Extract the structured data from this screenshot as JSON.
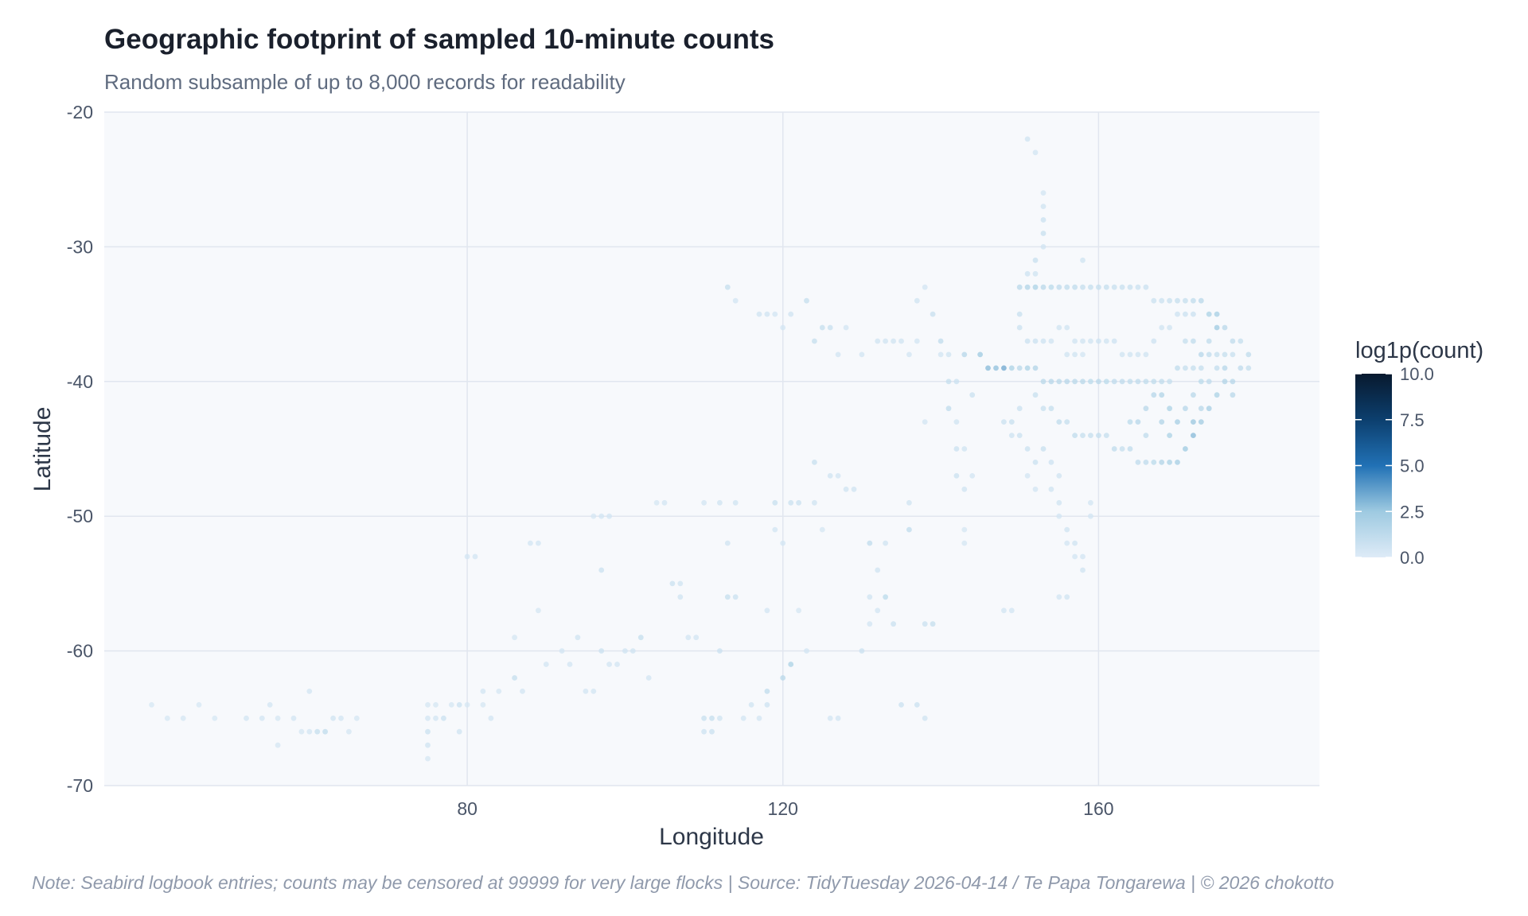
{
  "chart_data": {
    "type": "scatter",
    "title": "Geographic footprint of sampled 10-minute counts",
    "subtitle": "Random subsample of up to 8,000 records for readability",
    "xlabel": "Longitude",
    "ylabel": "Latitude",
    "xlim": [
      34,
      188
    ],
    "ylim": [
      -70,
      -20
    ],
    "x_ticks": [
      80,
      120,
      160
    ],
    "y_ticks": [
      -20,
      -30,
      -40,
      -50,
      -60,
      -70
    ],
    "x_tick_labels": [
      "80",
      "120",
      "160"
    ],
    "y_tick_labels": [
      "-20",
      "-30",
      "-40",
      "-50",
      "-60",
      "-70"
    ],
    "grid": true,
    "color_scale": {
      "title": "log1p(count)",
      "ticks": [
        0.0,
        2.5,
        5.0,
        7.5,
        10.0
      ],
      "tick_labels": [
        "0.0",
        "2.5",
        "5.0",
        "7.5",
        "10.0"
      ],
      "range": [
        0,
        10
      ],
      "low_color": "#deebf7",
      "mid_color": "#2171b5",
      "high_color": "#08192e",
      "position": "right"
    },
    "points": [
      [
        40,
        -64,
        0.3
      ],
      [
        42,
        -65,
        0.3
      ],
      [
        44,
        -65,
        0.4
      ],
      [
        46,
        -64,
        0.3
      ],
      [
        48,
        -65,
        0.3
      ],
      [
        52,
        -65,
        0.5
      ],
      [
        54,
        -65,
        0.5
      ],
      [
        55,
        -64,
        0.5
      ],
      [
        56,
        -65,
        0.4
      ],
      [
        56,
        -67,
        0.4
      ],
      [
        58,
        -65,
        0.5
      ],
      [
        59,
        -66,
        0.4
      ],
      [
        60,
        -66,
        0.5
      ],
      [
        60,
        -63,
        0.5
      ],
      [
        61,
        -66,
        1.0
      ],
      [
        62,
        -66,
        1.2
      ],
      [
        63,
        -65,
        0.6
      ],
      [
        64,
        -65,
        0.5
      ],
      [
        65,
        -66,
        0.4
      ],
      [
        66,
        -65,
        0.4
      ],
      [
        75,
        -64,
        0.4
      ],
      [
        75,
        -65,
        0.5
      ],
      [
        75,
        -66,
        0.8
      ],
      [
        75,
        -67,
        0.6
      ],
      [
        75,
        -68,
        0.4
      ],
      [
        76,
        -64,
        0.4
      ],
      [
        76,
        -65,
        0.5
      ],
      [
        77,
        -65,
        0.8
      ],
      [
        78,
        -64,
        0.4
      ],
      [
        79,
        -64,
        0.8
      ],
      [
        79,
        -66,
        0.6
      ],
      [
        80,
        -64,
        0.4
      ],
      [
        80,
        -53,
        0.5
      ],
      [
        81,
        -53,
        0.5
      ],
      [
        82,
        -63,
        0.5
      ],
      [
        82,
        -64,
        0.4
      ],
      [
        83,
        -65,
        0.5
      ],
      [
        84,
        -63,
        0.4
      ],
      [
        86,
        -62,
        1.0
      ],
      [
        86,
        -59,
        0.4
      ],
      [
        87,
        -63,
        0.5
      ],
      [
        88,
        -52,
        0.5
      ],
      [
        89,
        -52,
        0.5
      ],
      [
        89,
        -57,
        0.4
      ],
      [
        90,
        -61,
        0.5
      ],
      [
        92,
        -60,
        0.5
      ],
      [
        93,
        -61,
        0.5
      ],
      [
        94,
        -59,
        0.6
      ],
      [
        95,
        -63,
        0.5
      ],
      [
        96,
        -63,
        0.5
      ],
      [
        97,
        -60,
        0.8
      ],
      [
        97,
        -54,
        0.8
      ],
      [
        98,
        -61,
        0.5
      ],
      [
        99,
        -61,
        0.5
      ],
      [
        100,
        -60,
        0.6
      ],
      [
        101,
        -60,
        0.6
      ],
      [
        102,
        -59,
        1.0
      ],
      [
        103,
        -62,
        0.5
      ],
      [
        104,
        -49,
        0.4
      ],
      [
        105,
        -49,
        0.5
      ],
      [
        96,
        -50,
        0.4
      ],
      [
        97,
        -50,
        0.5
      ],
      [
        98,
        -50,
        0.5
      ],
      [
        106,
        -55,
        0.8
      ],
      [
        107,
        -55,
        0.6
      ],
      [
        107,
        -56,
        0.6
      ],
      [
        108,
        -59,
        0.5
      ],
      [
        109,
        -59,
        0.5
      ],
      [
        110,
        -65,
        0.9
      ],
      [
        110,
        -66,
        0.7
      ],
      [
        111,
        -65,
        1.0
      ],
      [
        111,
        -66,
        0.8
      ],
      [
        112,
        -65,
        0.6
      ],
      [
        112,
        -60,
        0.8
      ],
      [
        113,
        -52,
        0.6
      ],
      [
        113,
        -56,
        1.0
      ],
      [
        114,
        -56,
        0.8
      ],
      [
        114,
        -49,
        0.6
      ],
      [
        112,
        -49,
        0.6
      ],
      [
        110,
        -49,
        0.5
      ],
      [
        115,
        -65,
        0.5
      ],
      [
        116,
        -64,
        0.6
      ],
      [
        117,
        -65,
        0.5
      ],
      [
        118,
        -64,
        0.7
      ],
      [
        118,
        -63,
        1.2
      ],
      [
        118,
        -57,
        0.5
      ],
      [
        119,
        -51,
        0.5
      ],
      [
        119,
        -49,
        0.9
      ],
      [
        120,
        -52,
        0.5
      ],
      [
        120,
        -62,
        1.5
      ],
      [
        121,
        -61,
        2.0
      ],
      [
        121,
        -49,
        0.8
      ],
      [
        122,
        -49,
        0.8
      ],
      [
        122,
        -57,
        0.4
      ],
      [
        123,
        -60,
        0.5
      ],
      [
        124,
        -46,
        0.9
      ],
      [
        124,
        -49,
        0.6
      ],
      [
        125,
        -51,
        0.4
      ],
      [
        126,
        -65,
        0.5
      ],
      [
        127,
        -65,
        0.5
      ],
      [
        126,
        -47,
        0.6
      ],
      [
        127,
        -47,
        0.5
      ],
      [
        128,
        -48,
        0.6
      ],
      [
        129,
        -48,
        0.6
      ],
      [
        130,
        -60,
        0.8
      ],
      [
        131,
        -52,
        1.2
      ],
      [
        131,
        -56,
        0.6
      ],
      [
        131,
        -58,
        0.5
      ],
      [
        132,
        -57,
        0.5
      ],
      [
        132,
        -54,
        0.6
      ],
      [
        133,
        -56,
        1.4
      ],
      [
        133,
        -52,
        0.6
      ],
      [
        134,
        -58,
        0.8
      ],
      [
        135,
        -64,
        0.8
      ],
      [
        136,
        -49,
        0.6
      ],
      [
        136,
        -51,
        1.2
      ],
      [
        137,
        -64,
        0.8
      ],
      [
        138,
        -65,
        0.6
      ],
      [
        138,
        -58,
        0.8
      ],
      [
        139,
        -58,
        1.0
      ],
      [
        113,
        -33,
        1.0
      ],
      [
        114,
        -34,
        0.5
      ],
      [
        117,
        -35,
        0.6
      ],
      [
        118,
        -35,
        0.6
      ],
      [
        119,
        -35,
        0.5
      ],
      [
        120,
        -36,
        0.5
      ],
      [
        121,
        -35,
        0.6
      ],
      [
        123,
        -34,
        1.0
      ],
      [
        124,
        -37,
        1.0
      ],
      [
        125,
        -36,
        1.0
      ],
      [
        126,
        -36,
        0.9
      ],
      [
        127,
        -38,
        0.5
      ],
      [
        128,
        -36,
        0.5
      ],
      [
        130,
        -38,
        0.5
      ],
      [
        132,
        -37,
        0.6
      ],
      [
        133,
        -37,
        0.6
      ],
      [
        134,
        -37,
        0.6
      ],
      [
        135,
        -37,
        0.6
      ],
      [
        136,
        -38,
        0.5
      ],
      [
        137,
        -34,
        0.6
      ],
      [
        137,
        -37,
        0.5
      ],
      [
        138,
        -33,
        0.5
      ],
      [
        139,
        -35,
        0.9
      ],
      [
        140,
        -37,
        1.2
      ],
      [
        140,
        -38,
        0.5
      ],
      [
        141,
        -38,
        0.6
      ],
      [
        141,
        -40,
        1.0
      ],
      [
        141,
        -42,
        1.2
      ],
      [
        142,
        -40,
        0.8
      ],
      [
        143,
        -38,
        1.6
      ],
      [
        144,
        -41,
        0.8
      ],
      [
        142,
        -43,
        0.6
      ],
      [
        142,
        -45,
        0.8
      ],
      [
        143,
        -45,
        0.6
      ],
      [
        142,
        -47,
        0.8
      ],
      [
        143,
        -48,
        0.6
      ],
      [
        143,
        -51,
        0.4
      ],
      [
        143,
        -52,
        0.4
      ],
      [
        144,
        -47,
        0.5
      ],
      [
        138,
        -43,
        0.5
      ],
      [
        145,
        -38,
        2.5
      ],
      [
        146,
        -39,
        3.0
      ],
      [
        147,
        -39,
        2.8
      ],
      [
        148,
        -39,
        3.5
      ],
      [
        149,
        -39,
        2.0
      ],
      [
        150,
        -39,
        1.5
      ],
      [
        151,
        -39,
        2.0
      ],
      [
        152,
        -39,
        1.8
      ],
      [
        153,
        -40,
        1.5
      ],
      [
        154,
        -40,
        1.6
      ],
      [
        155,
        -40,
        1.5
      ],
      [
        156,
        -40,
        1.6
      ],
      [
        157,
        -40,
        1.5
      ],
      [
        158,
        -40,
        1.5
      ],
      [
        159,
        -40,
        1.4
      ],
      [
        160,
        -40,
        1.5
      ],
      [
        161,
        -40,
        1.4
      ],
      [
        162,
        -40,
        1.3
      ],
      [
        163,
        -40,
        1.3
      ],
      [
        164,
        -40,
        1.2
      ],
      [
        165,
        -40,
        1.3
      ],
      [
        166,
        -40,
        1.2
      ],
      [
        167,
        -40,
        1.2
      ],
      [
        168,
        -40,
        1.2
      ],
      [
        169,
        -40,
        1.0
      ],
      [
        170,
        -39,
        1.2
      ],
      [
        171,
        -39,
        1.0
      ],
      [
        172,
        -39,
        1.0
      ],
      [
        173,
        -39,
        1.0
      ],
      [
        174,
        -38,
        1.2
      ],
      [
        175,
        -38,
        1.0
      ],
      [
        176,
        -38,
        1.0
      ],
      [
        177,
        -38,
        0.9
      ],
      [
        178,
        -37,
        1.0
      ],
      [
        179,
        -38,
        1.2
      ],
      [
        179,
        -39,
        1.0
      ],
      [
        150,
        -33,
        1.5
      ],
      [
        151,
        -33,
        1.8
      ],
      [
        152,
        -33,
        2.0
      ],
      [
        153,
        -33,
        1.5
      ],
      [
        154,
        -33,
        1.4
      ],
      [
        155,
        -33,
        1.3
      ],
      [
        156,
        -33,
        1.2
      ],
      [
        157,
        -33,
        1.2
      ],
      [
        158,
        -33,
        1.0
      ],
      [
        159,
        -33,
        1.0
      ],
      [
        160,
        -33,
        1.0
      ],
      [
        161,
        -33,
        1.0
      ],
      [
        162,
        -33,
        0.9
      ],
      [
        163,
        -33,
        0.9
      ],
      [
        164,
        -33,
        0.9
      ],
      [
        165,
        -33,
        0.8
      ],
      [
        166,
        -33,
        0.8
      ],
      [
        167,
        -34,
        0.8
      ],
      [
        168,
        -34,
        0.8
      ],
      [
        169,
        -34,
        0.9
      ],
      [
        170,
        -34,
        1.0
      ],
      [
        171,
        -34,
        1.0
      ],
      [
        172,
        -34,
        1.2
      ],
      [
        173,
        -34,
        1.5
      ],
      [
        174,
        -35,
        2.0
      ],
      [
        175,
        -35,
        2.2
      ],
      [
        175,
        -36,
        2.5
      ],
      [
        176,
        -36,
        1.5
      ],
      [
        177,
        -37,
        1.2
      ],
      [
        151,
        -22,
        0.6
      ],
      [
        152,
        -23,
        0.5
      ],
      [
        153,
        -26,
        0.5
      ],
      [
        153,
        -27,
        0.6
      ],
      [
        153,
        -28,
        0.8
      ],
      [
        153,
        -29,
        0.9
      ],
      [
        153,
        -30,
        0.6
      ],
      [
        152,
        -31,
        0.9
      ],
      [
        151,
        -32,
        0.7
      ],
      [
        152,
        -32,
        0.6
      ],
      [
        158,
        -31,
        0.6
      ],
      [
        150,
        -35,
        0.9
      ],
      [
        150,
        -36,
        0.8
      ],
      [
        151,
        -37,
        0.8
      ],
      [
        152,
        -37,
        0.8
      ],
      [
        153,
        -37,
        0.7
      ],
      [
        154,
        -37,
        0.6
      ],
      [
        155,
        -36,
        0.6
      ],
      [
        156,
        -36,
        0.6
      ],
      [
        157,
        -37,
        0.6
      ],
      [
        158,
        -37,
        0.6
      ],
      [
        159,
        -37,
        0.6
      ],
      [
        160,
        -37,
        0.7
      ],
      [
        161,
        -37,
        0.6
      ],
      [
        162,
        -37,
        0.7
      ],
      [
        163,
        -38,
        0.6
      ],
      [
        164,
        -38,
        0.6
      ],
      [
        165,
        -38,
        0.6
      ],
      [
        166,
        -38,
        0.6
      ],
      [
        167,
        -37,
        0.7
      ],
      [
        168,
        -36,
        0.6
      ],
      [
        169,
        -36,
        0.6
      ],
      [
        170,
        -35,
        0.7
      ],
      [
        171,
        -35,
        0.8
      ],
      [
        172,
        -35,
        0.8
      ],
      [
        152,
        -41,
        0.9
      ],
      [
        153,
        -42,
        0.9
      ],
      [
        154,
        -42,
        1.0
      ],
      [
        155,
        -43,
        1.2
      ],
      [
        156,
        -43,
        1.0
      ],
      [
        157,
        -44,
        1.2
      ],
      [
        158,
        -44,
        1.0
      ],
      [
        159,
        -44,
        1.0
      ],
      [
        160,
        -44,
        1.1
      ],
      [
        161,
        -44,
        1.0
      ],
      [
        162,
        -45,
        1.2
      ],
      [
        163,
        -45,
        1.0
      ],
      [
        164,
        -45,
        1.2
      ],
      [
        165,
        -46,
        1.3
      ],
      [
        166,
        -46,
        1.3
      ],
      [
        167,
        -46,
        1.4
      ],
      [
        168,
        -46,
        1.8
      ],
      [
        169,
        -46,
        2.0
      ],
      [
        170,
        -46,
        2.2
      ],
      [
        171,
        -45,
        2.5
      ],
      [
        172,
        -44,
        3.0
      ],
      [
        172,
        -43,
        2.6
      ],
      [
        173,
        -43,
        2.4
      ],
      [
        174,
        -42,
        2.2
      ],
      [
        175,
        -41,
        2.0
      ],
      [
        176,
        -40,
        1.8
      ],
      [
        176,
        -39,
        1.6
      ],
      [
        177,
        -41,
        1.5
      ],
      [
        177,
        -40,
        1.6
      ],
      [
        178,
        -39,
        1.3
      ],
      [
        170,
        -43,
        2.2
      ],
      [
        169,
        -42,
        2.0
      ],
      [
        168,
        -41,
        1.8
      ],
      [
        167,
        -41,
        1.6
      ],
      [
        166,
        -42,
        1.5
      ],
      [
        165,
        -43,
        1.6
      ],
      [
        164,
        -43,
        1.4
      ],
      [
        166,
        -44,
        1.2
      ],
      [
        168,
        -43,
        1.8
      ],
      [
        169,
        -44,
        2.0
      ],
      [
        173,
        -38,
        1.6
      ],
      [
        173,
        -40,
        1.4
      ],
      [
        172,
        -41,
        1.5
      ],
      [
        171,
        -42,
        1.6
      ],
      [
        173,
        -42,
        1.5
      ],
      [
        174,
        -40,
        1.3
      ],
      [
        172,
        -37,
        1.2
      ],
      [
        171,
        -37,
        1.0
      ],
      [
        174,
        -37,
        1.2
      ],
      [
        175,
        -39,
        1.1
      ],
      [
        148,
        -43,
        0.8
      ],
      [
        149,
        -43,
        0.9
      ],
      [
        150,
        -44,
        0.8
      ],
      [
        151,
        -45,
        0.8
      ],
      [
        152,
        -46,
        0.8
      ],
      [
        153,
        -45,
        0.9
      ],
      [
        154,
        -46,
        0.7
      ],
      [
        155,
        -47,
        0.6
      ],
      [
        154,
        -48,
        0.6
      ],
      [
        155,
        -49,
        0.6
      ],
      [
        155,
        -50,
        0.5
      ],
      [
        156,
        -51,
        0.6
      ],
      [
        156,
        -52,
        0.5
      ],
      [
        157,
        -52,
        0.6
      ],
      [
        157,
        -53,
        0.5
      ],
      [
        158,
        -54,
        0.6
      ],
      [
        158,
        -53,
        0.5
      ],
      [
        159,
        -49,
        0.5
      ],
      [
        159,
        -50,
        0.5
      ],
      [
        156,
        -56,
        0.6
      ],
      [
        155,
        -56,
        0.5
      ],
      [
        149,
        -57,
        0.5
      ],
      [
        148,
        -57,
        0.5
      ],
      [
        151,
        -47,
        0.5
      ],
      [
        152,
        -48,
        0.5
      ],
      [
        149,
        -44,
        0.7
      ],
      [
        150,
        -42,
        0.8
      ],
      [
        156,
        -38,
        0.6
      ],
      [
        157,
        -38,
        0.6
      ],
      [
        158,
        -38,
        0.5
      ]
    ]
  },
  "caption": "Note: Seabird logbook entries; counts may be censored at 99999 for very large flocks  |  Source: TidyTuesday 2026-04-14 / Te Papa Tongarewa  |  © 2026 chokotto"
}
